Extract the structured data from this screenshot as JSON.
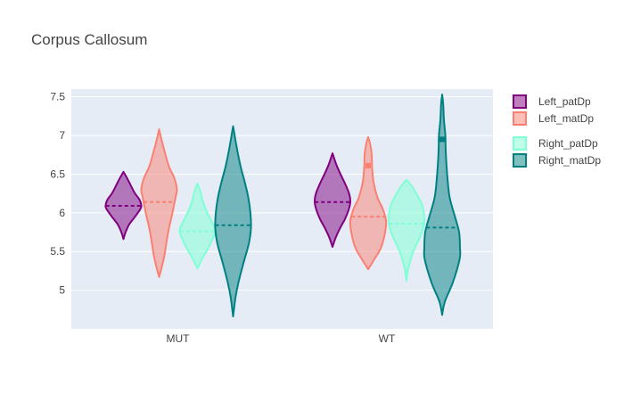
{
  "chart_data": {
    "type": "violin",
    "title": "Corpus Callosum",
    "xlabel": "",
    "ylabel": "",
    "categories": [
      "MUT",
      "WT"
    ],
    "ylim": [
      4.5,
      7.6
    ],
    "yticks": [
      5,
      5.5,
      6,
      6.5,
      7,
      7.5
    ],
    "ytick_labels": [
      "5",
      "5.5",
      "6",
      "6.5",
      "7",
      "7.5"
    ],
    "grid": true,
    "legend_position": "top-right",
    "series": [
      {
        "name": "Left_patDp",
        "color": "#800080",
        "fill": "rgba(128,0,128,0.5)",
        "violins": [
          {
            "category": "MUT",
            "min": 5.66,
            "max": 6.53,
            "median": 6.09,
            "mean": 6.09,
            "profile": [
              [
                5.66,
                0
              ],
              [
                5.75,
                0.12
              ],
              [
                5.85,
                0.32
              ],
              [
                5.95,
                0.65
              ],
              [
                6.05,
                0.95
              ],
              [
                6.1,
                1.0
              ],
              [
                6.17,
                0.9
              ],
              [
                6.25,
                0.65
              ],
              [
                6.35,
                0.42
              ],
              [
                6.45,
                0.2
              ],
              [
                6.53,
                0
              ]
            ]
          },
          {
            "category": "WT",
            "min": 5.56,
            "max": 6.77,
            "median": 6.14,
            "mean": 6.14,
            "profile": [
              [
                5.56,
                0
              ],
              [
                5.68,
                0.18
              ],
              [
                5.8,
                0.42
              ],
              [
                5.92,
                0.7
              ],
              [
                6.05,
                0.92
              ],
              [
                6.15,
                1.0
              ],
              [
                6.25,
                0.93
              ],
              [
                6.38,
                0.7
              ],
              [
                6.5,
                0.45
              ],
              [
                6.62,
                0.22
              ],
              [
                6.77,
                0
              ]
            ]
          }
        ]
      },
      {
        "name": "Left_matDp",
        "color": "#fa8072",
        "fill": "rgba(250,128,114,0.5)",
        "violins": [
          {
            "category": "MUT",
            "min": 5.17,
            "max": 7.08,
            "median": 6.14,
            "mean": 6.14,
            "profile": [
              [
                5.17,
                0
              ],
              [
                5.3,
                0.15
              ],
              [
                5.45,
                0.3
              ],
              [
                5.6,
                0.4
              ],
              [
                5.8,
                0.55
              ],
              [
                6.0,
                0.75
              ],
              [
                6.2,
                0.92
              ],
              [
                6.3,
                1.0
              ],
              [
                6.45,
                0.85
              ],
              [
                6.6,
                0.55
              ],
              [
                6.8,
                0.3
              ],
              [
                6.95,
                0.13
              ],
              [
                7.08,
                0
              ]
            ]
          },
          {
            "category": "WT",
            "min": 5.27,
            "max": 6.98,
            "median": 5.95,
            "mean": 6.61,
            "profile": [
              [
                5.27,
                0
              ],
              [
                5.4,
                0.35
              ],
              [
                5.55,
                0.72
              ],
              [
                5.75,
                0.95
              ],
              [
                5.9,
                1.0
              ],
              [
                6.05,
                0.82
              ],
              [
                6.2,
                0.52
              ],
              [
                6.4,
                0.3
              ],
              [
                6.6,
                0.22
              ],
              [
                6.75,
                0.2
              ],
              [
                6.88,
                0.12
              ],
              [
                6.98,
                0
              ]
            ]
          }
        ]
      },
      {
        "name": "Right_patDp",
        "color": "#7fffd4",
        "fill": "rgba(127,255,212,0.5)",
        "violins": [
          {
            "category": "MUT",
            "min": 5.28,
            "max": 6.38,
            "median": 5.76,
            "mean": 5.76,
            "profile": [
              [
                5.28,
                0
              ],
              [
                5.4,
                0.25
              ],
              [
                5.55,
                0.62
              ],
              [
                5.7,
                0.92
              ],
              [
                5.78,
                1.0
              ],
              [
                5.88,
                0.82
              ],
              [
                6.0,
                0.55
              ],
              [
                6.15,
                0.3
              ],
              [
                6.25,
                0.2
              ],
              [
                6.38,
                0
              ]
            ]
          },
          {
            "category": "WT",
            "min": 5.12,
            "max": 6.43,
            "median": 5.86,
            "mean": 5.86,
            "profile": [
              [
                5.12,
                0
              ],
              [
                5.3,
                0.12
              ],
              [
                5.5,
                0.38
              ],
              [
                5.7,
                0.78
              ],
              [
                5.85,
                0.98
              ],
              [
                5.95,
                1.0
              ],
              [
                6.1,
                0.88
              ],
              [
                6.25,
                0.55
              ],
              [
                6.35,
                0.28
              ],
              [
                6.43,
                0
              ]
            ]
          }
        ]
      },
      {
        "name": "Right_matDp",
        "color": "#008080",
        "fill": "rgba(0,128,128,0.5)",
        "violins": [
          {
            "category": "MUT",
            "min": 4.66,
            "max": 7.12,
            "median": 5.84,
            "mean": 5.84,
            "profile": [
              [
                4.66,
                0
              ],
              [
                4.9,
                0.13
              ],
              [
                5.1,
                0.3
              ],
              [
                5.35,
                0.58
              ],
              [
                5.6,
                0.88
              ],
              [
                5.8,
                1.0
              ],
              [
                6.0,
                0.97
              ],
              [
                6.2,
                0.85
              ],
              [
                6.4,
                0.65
              ],
              [
                6.6,
                0.42
              ],
              [
                6.85,
                0.2
              ],
              [
                7.12,
                0
              ]
            ]
          },
          {
            "category": "WT",
            "min": 4.68,
            "max": 7.53,
            "median": 5.81,
            "mean": 6.95,
            "profile": [
              [
                4.68,
                0
              ],
              [
                4.85,
                0.15
              ],
              [
                5.1,
                0.6
              ],
              [
                5.4,
                0.98
              ],
              [
                5.55,
                1.0
              ],
              [
                5.75,
                0.95
              ],
              [
                5.95,
                0.72
              ],
              [
                6.2,
                0.42
              ],
              [
                6.5,
                0.28
              ],
              [
                6.8,
                0.2
              ],
              [
                7.0,
                0.18
              ],
              [
                7.2,
                0.1
              ],
              [
                7.4,
                0.06
              ],
              [
                7.53,
                0
              ]
            ]
          }
        ]
      }
    ]
  }
}
